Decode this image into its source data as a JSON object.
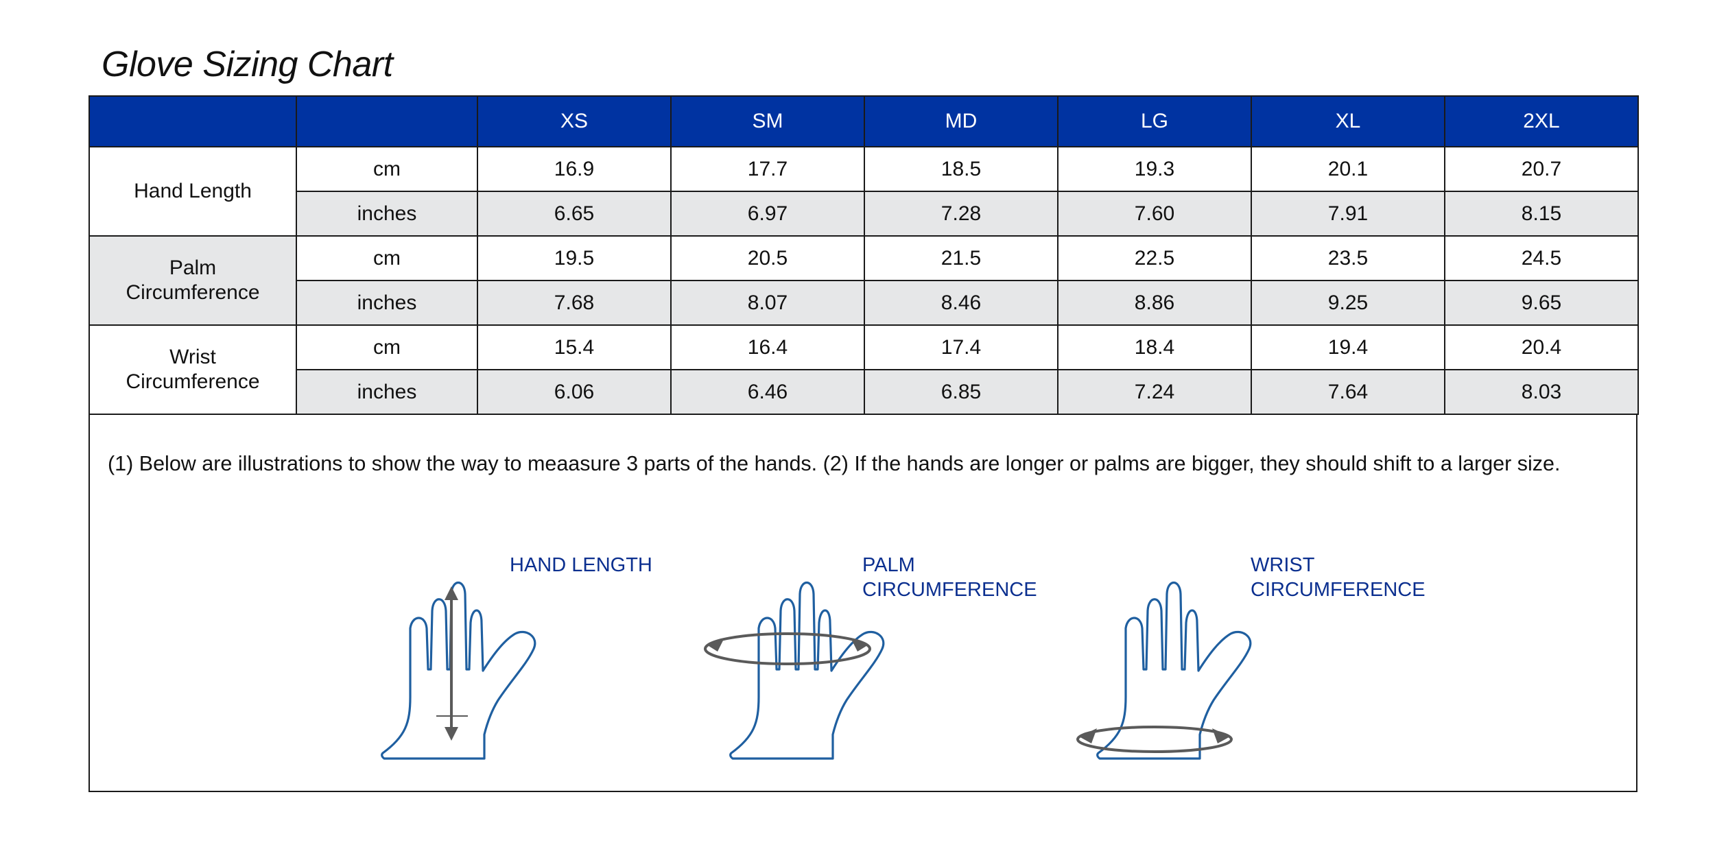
{
  "title": "Glove Sizing Chart",
  "table": {
    "header": [
      "",
      "",
      "XS",
      "SM",
      "MD",
      "LG",
      "XL",
      "2XL"
    ],
    "groups": [
      {
        "label": "Hand Length",
        "rows": [
          {
            "unit": "cm",
            "values": [
              "16.9",
              "17.7",
              "18.5",
              "19.3",
              "20.1",
              "20.7"
            ]
          },
          {
            "unit": "inches",
            "values": [
              "6.65",
              "6.97",
              "7.28",
              "7.60",
              "7.91",
              "8.15"
            ]
          }
        ]
      },
      {
        "label": "Palm\nCircumference",
        "rows": [
          {
            "unit": "cm",
            "values": [
              "19.5",
              "20.5",
              "21.5",
              "22.5",
              "23.5",
              "24.5"
            ]
          },
          {
            "unit": "inches",
            "values": [
              "7.68",
              "8.07",
              "8.46",
              "8.86",
              "9.25",
              "9.65"
            ]
          }
        ]
      },
      {
        "label": "Wrist\nCircumference",
        "rows": [
          {
            "unit": "cm",
            "values": [
              "15.4",
              "16.4",
              "17.4",
              "18.4",
              "19.4",
              "20.4"
            ]
          },
          {
            "unit": "inches",
            "values": [
              "6.06",
              "6.46",
              "6.85",
              "7.24",
              "7.64",
              "8.03"
            ]
          }
        ]
      }
    ]
  },
  "note": "(1) Below are illustrations to show the way to meaasure 3 parts of the hands. (2) If the hands are longer or palms are bigger, they should shift to a larger size.",
  "illustrations": [
    {
      "label": "HAND LENGTH",
      "icon": "hand-length-icon"
    },
    {
      "label": "PALM\nCIRCUMFERENCE",
      "icon": "palm-circumference-icon"
    },
    {
      "label": "WRIST\nCIRCUMFERENCE",
      "icon": "wrist-circumference-icon"
    }
  ],
  "colors": {
    "header_bg": "#0033a1",
    "header_text": "#ffffff",
    "row_gray": "#e6e7e8",
    "hand_outline": "#1f5fa0",
    "arrow": "#5a5a5a",
    "label_blue": "#0b2f8f"
  }
}
